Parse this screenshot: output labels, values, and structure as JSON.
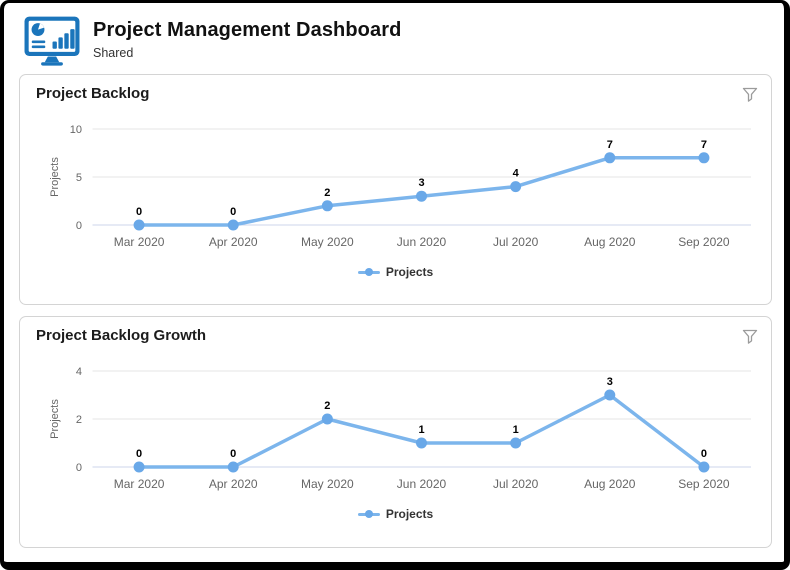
{
  "window": {
    "title": "Project Management Dashboard",
    "subtitle": "Shared"
  },
  "icons": {
    "header": "dashboard-monitor-icon",
    "panel_action": "filter-funnel-icon"
  },
  "colors": {
    "brand_blue": "#1b75bb",
    "series_line": "#7cb5ec",
    "series_marker": "#69a8e8",
    "grid_line": "#e6e6e6",
    "axis_line": "#ccd6eb",
    "axis_text": "#666666",
    "data_label_text": "#000000",
    "legend_text": "#333333",
    "icon_gray": "#9b9b9b",
    "panel_border": "#d4d4d4"
  },
  "chart_data": [
    {
      "type": "line",
      "panel_title": "Project Backlog",
      "ylabel": "Projects",
      "legend": "Projects",
      "categories": [
        "Mar 2020",
        "Apr 2020",
        "May 2020",
        "Jun 2020",
        "Jul 2020",
        "Aug 2020",
        "Sep 2020"
      ],
      "values": [
        0,
        0,
        2,
        3,
        4,
        7,
        7
      ],
      "y_ticks": [
        0,
        5,
        10
      ],
      "ylim": [
        0,
        10
      ],
      "grid": true,
      "legend_position": "bottom"
    },
    {
      "type": "line",
      "panel_title": "Project Backlog Growth",
      "ylabel": "Projects",
      "legend": "Projects",
      "categories": [
        "Mar 2020",
        "Apr 2020",
        "May 2020",
        "Jun 2020",
        "Jul 2020",
        "Aug 2020",
        "Sep 2020"
      ],
      "values": [
        0,
        0,
        2,
        1,
        1,
        3,
        0
      ],
      "y_ticks": [
        0,
        2,
        4
      ],
      "ylim": [
        0,
        4
      ],
      "grid": true,
      "legend_position": "bottom"
    }
  ]
}
